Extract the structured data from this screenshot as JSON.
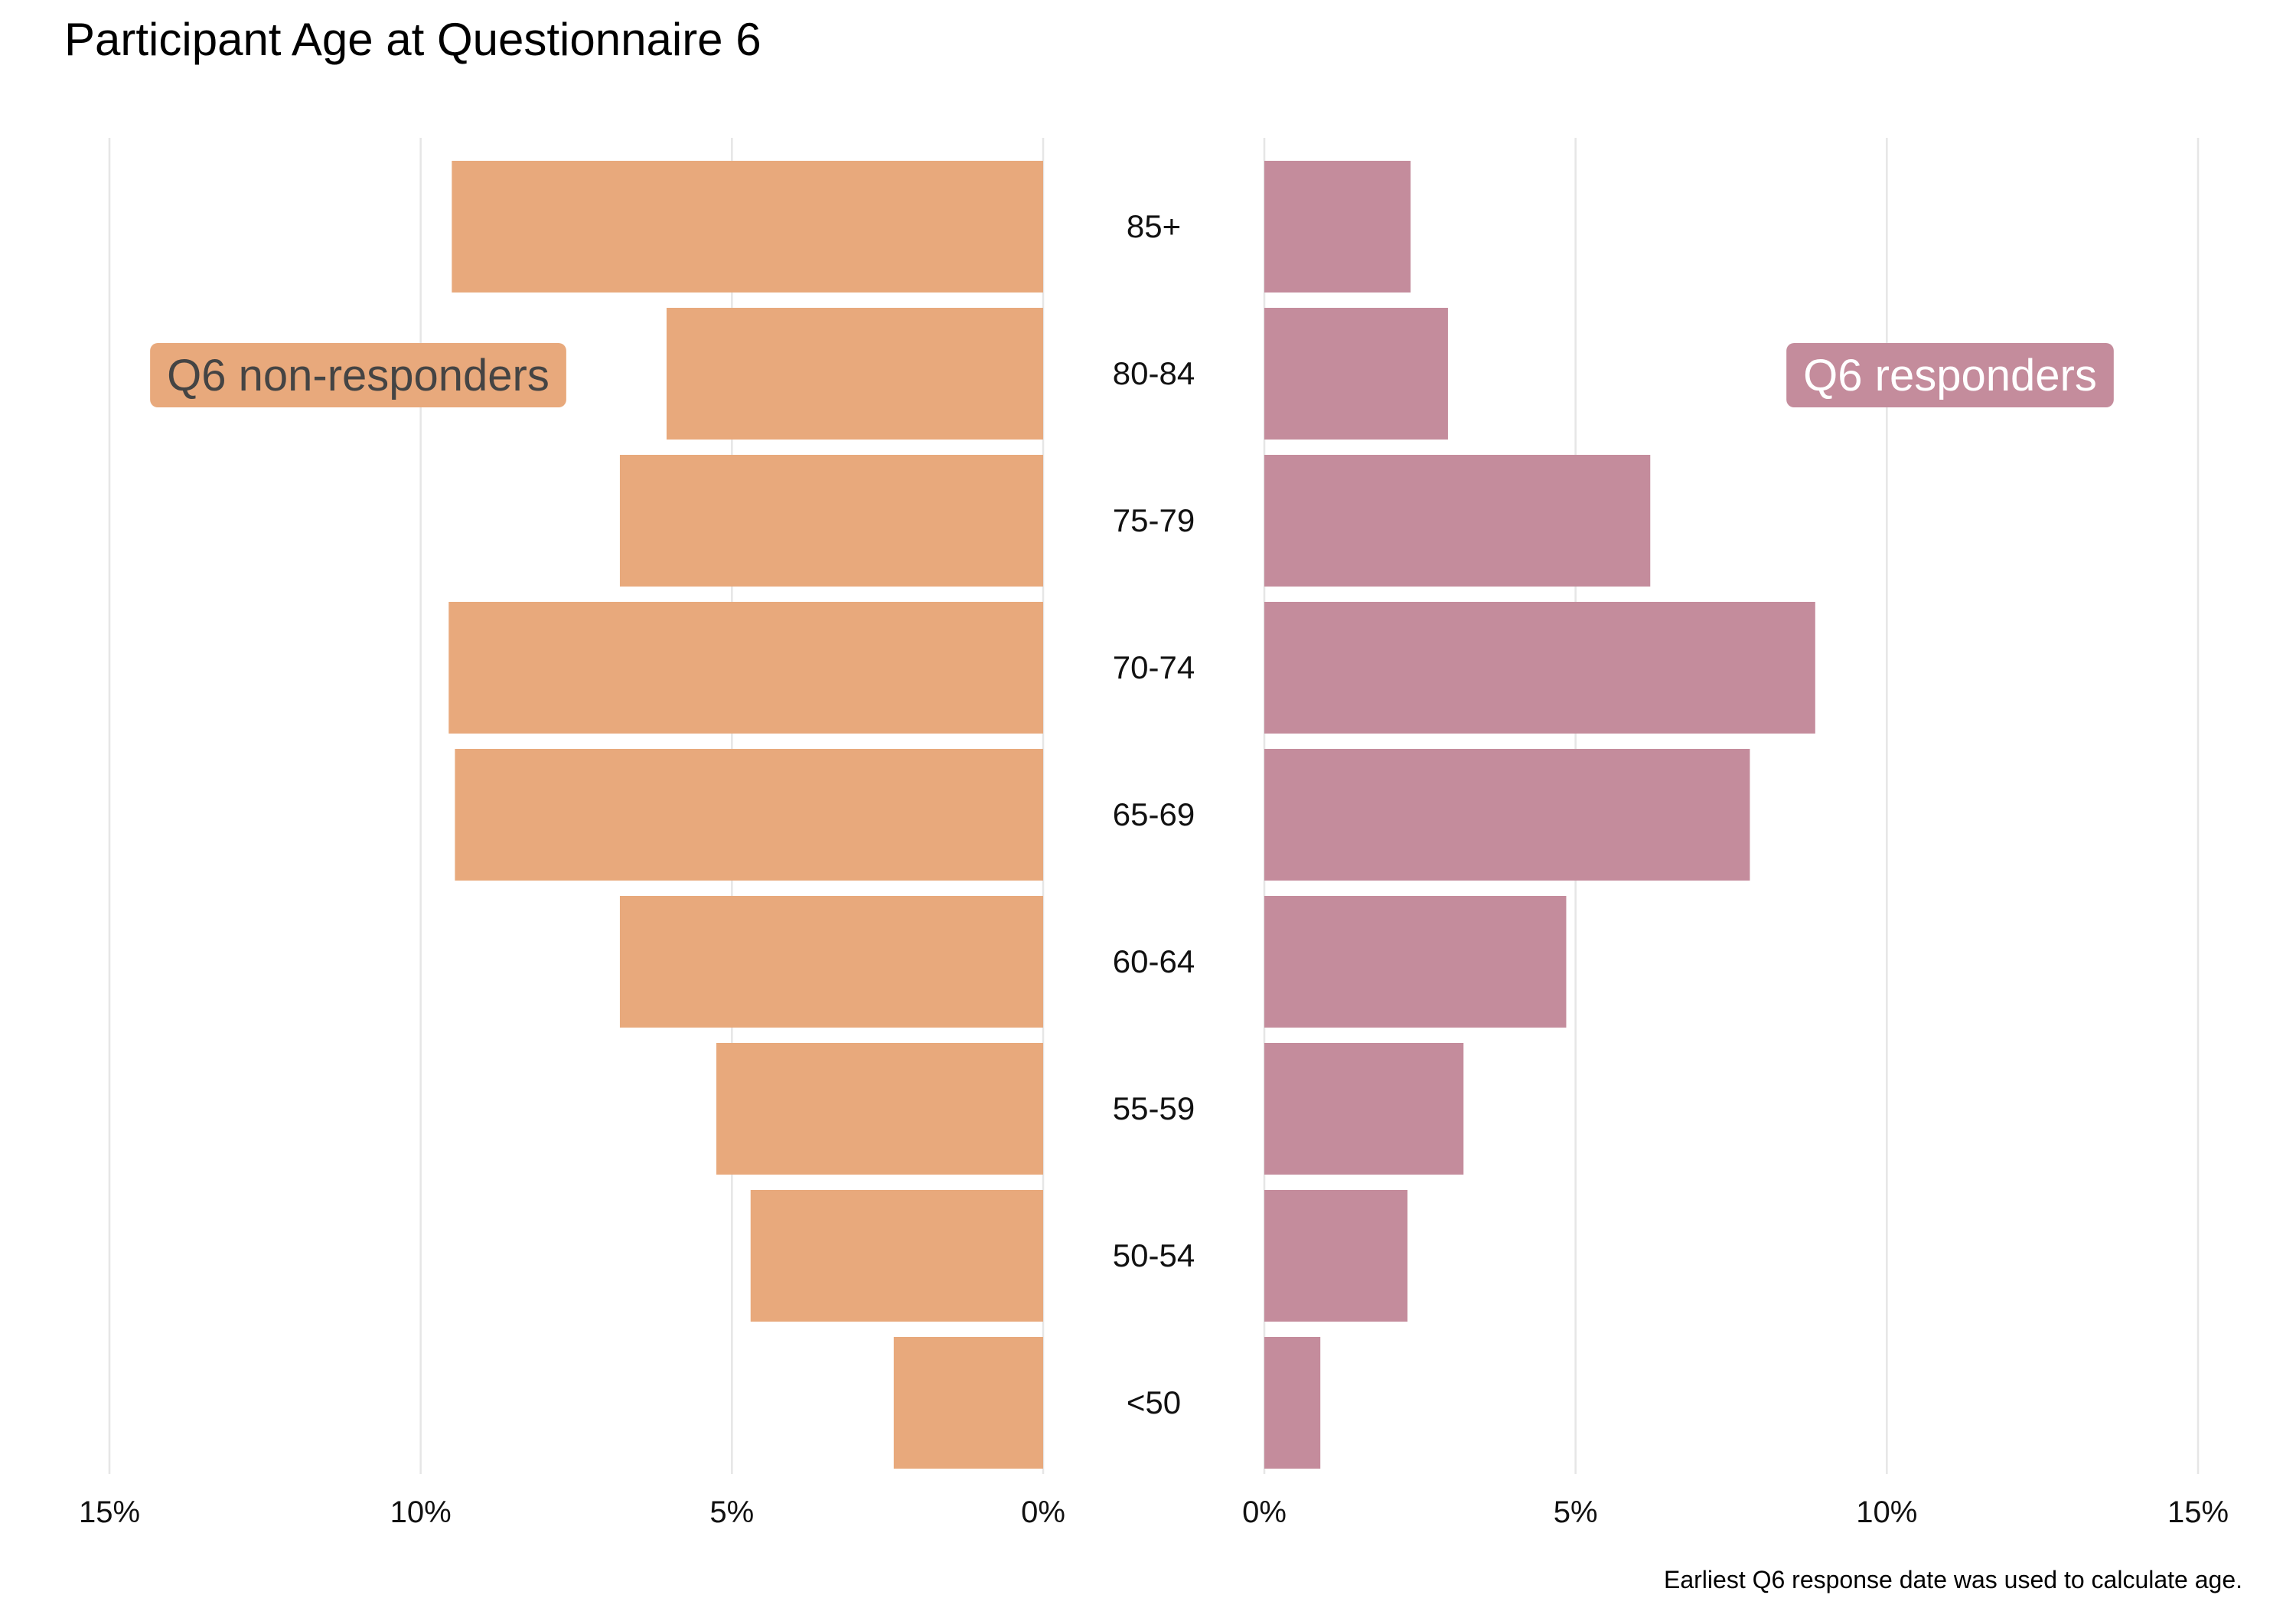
{
  "title": "Participant Age at Questionnaire 6",
  "caption": "Earliest Q6 response date was used to calculate age.",
  "chart_data": {
    "type": "bar",
    "orientation": "horizontal",
    "layout": "population-pyramid",
    "categories": [
      "85+",
      "80-84",
      "75-79",
      "70-74",
      "65-69",
      "60-64",
      "55-59",
      "50-54",
      "<50"
    ],
    "series": [
      {
        "name": "Q6 non-responders",
        "color": "#E8A97C",
        "side": "left",
        "values": [
          9.5,
          6.05,
          6.8,
          9.55,
          9.45,
          6.8,
          5.25,
          4.7,
          2.4
        ]
      },
      {
        "name": "Q6 responders",
        "color": "#C48C9C",
        "side": "right",
        "values": [
          2.35,
          2.95,
          6.2,
          8.85,
          7.8,
          4.85,
          3.2,
          2.3,
          0.9
        ]
      }
    ],
    "xlim": [
      0,
      15
    ],
    "xticks": [
      15,
      10,
      5,
      0
    ],
    "xtick_labels_left": [
      "15%",
      "10%",
      "5%",
      "0%"
    ],
    "xtick_labels_right": [
      "0%",
      "5%",
      "10%",
      "15%"
    ],
    "grid": true,
    "xlabel": "",
    "ylabel": ""
  }
}
